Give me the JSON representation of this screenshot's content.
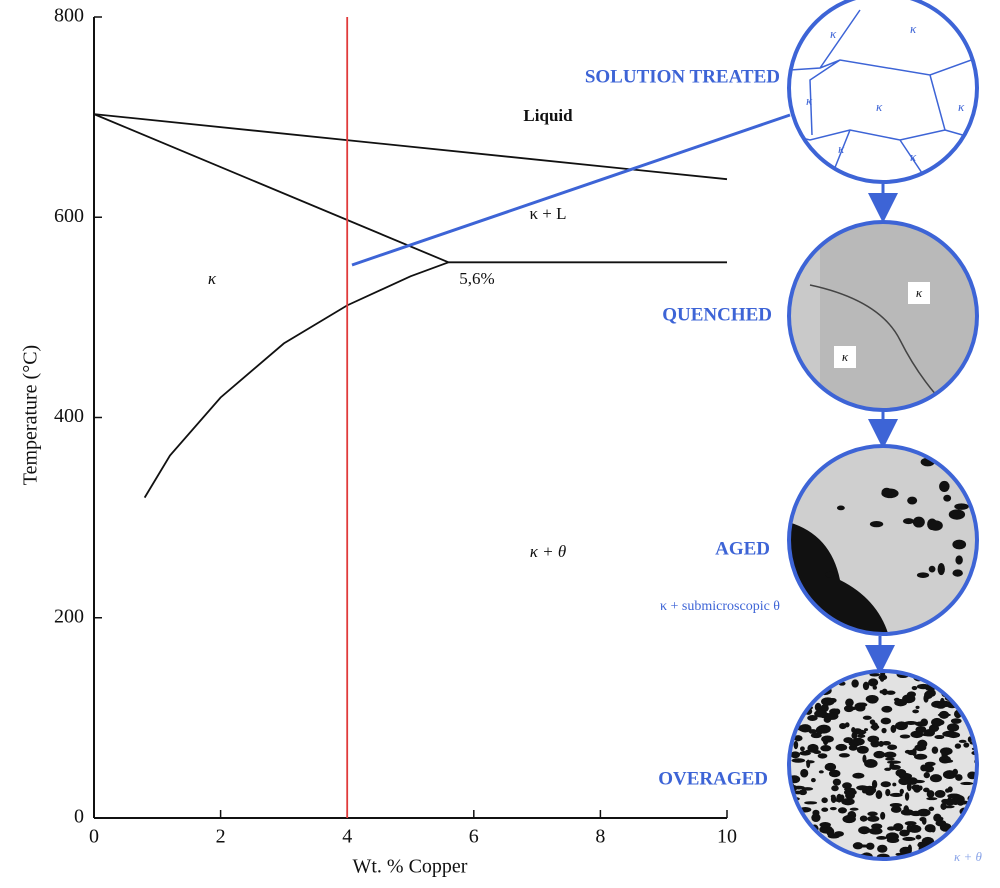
{
  "chart_data": {
    "type": "line",
    "xlabel": "Wt. % Copper",
    "ylabel": "Temperature (°C)",
    "xlim": [
      0,
      10
    ],
    "ylim": [
      0,
      800
    ],
    "xticks": [
      0,
      2,
      4,
      6,
      8,
      10
    ],
    "yticks": [
      0,
      200,
      400,
      600,
      800
    ],
    "annotations": [
      "Liquid",
      "κ + L",
      "κ",
      "5,6%",
      "κ + θ"
    ],
    "series": [
      {
        "color": "#111111",
        "x": [
          0,
          10
        ],
        "values": [
          703,
          638
        ]
      },
      {
        "color": "#111111",
        "x": [
          0,
          5.6
        ],
        "values": [
          703,
          555
        ]
      },
      {
        "color": "#111111",
        "x": [
          5.6,
          10
        ],
        "values": [
          555,
          555
        ]
      },
      {
        "color": "#111111",
        "x": [
          0.8,
          1.2,
          2,
          3,
          4,
          5,
          5.6
        ],
        "values": [
          320,
          362,
          420,
          474,
          512,
          541,
          555
        ]
      },
      {
        "color": "#e03a3a",
        "x": [
          4,
          4
        ],
        "values": [
          0,
          800
        ]
      }
    ]
  },
  "micrographs": [
    {
      "label": "SOLUTION TREATED",
      "phases": [
        "κ",
        "κ",
        "κ",
        "κ",
        "κ",
        "κ",
        "κ"
      ]
    },
    {
      "label": "QUENCHED",
      "phases": [
        "κ",
        "κ"
      ]
    },
    {
      "label": "AGED",
      "phases": [
        "κ + submicroscopic θ"
      ]
    },
    {
      "label": "OVERAGED",
      "phases": [
        "κ + θ"
      ]
    }
  ]
}
